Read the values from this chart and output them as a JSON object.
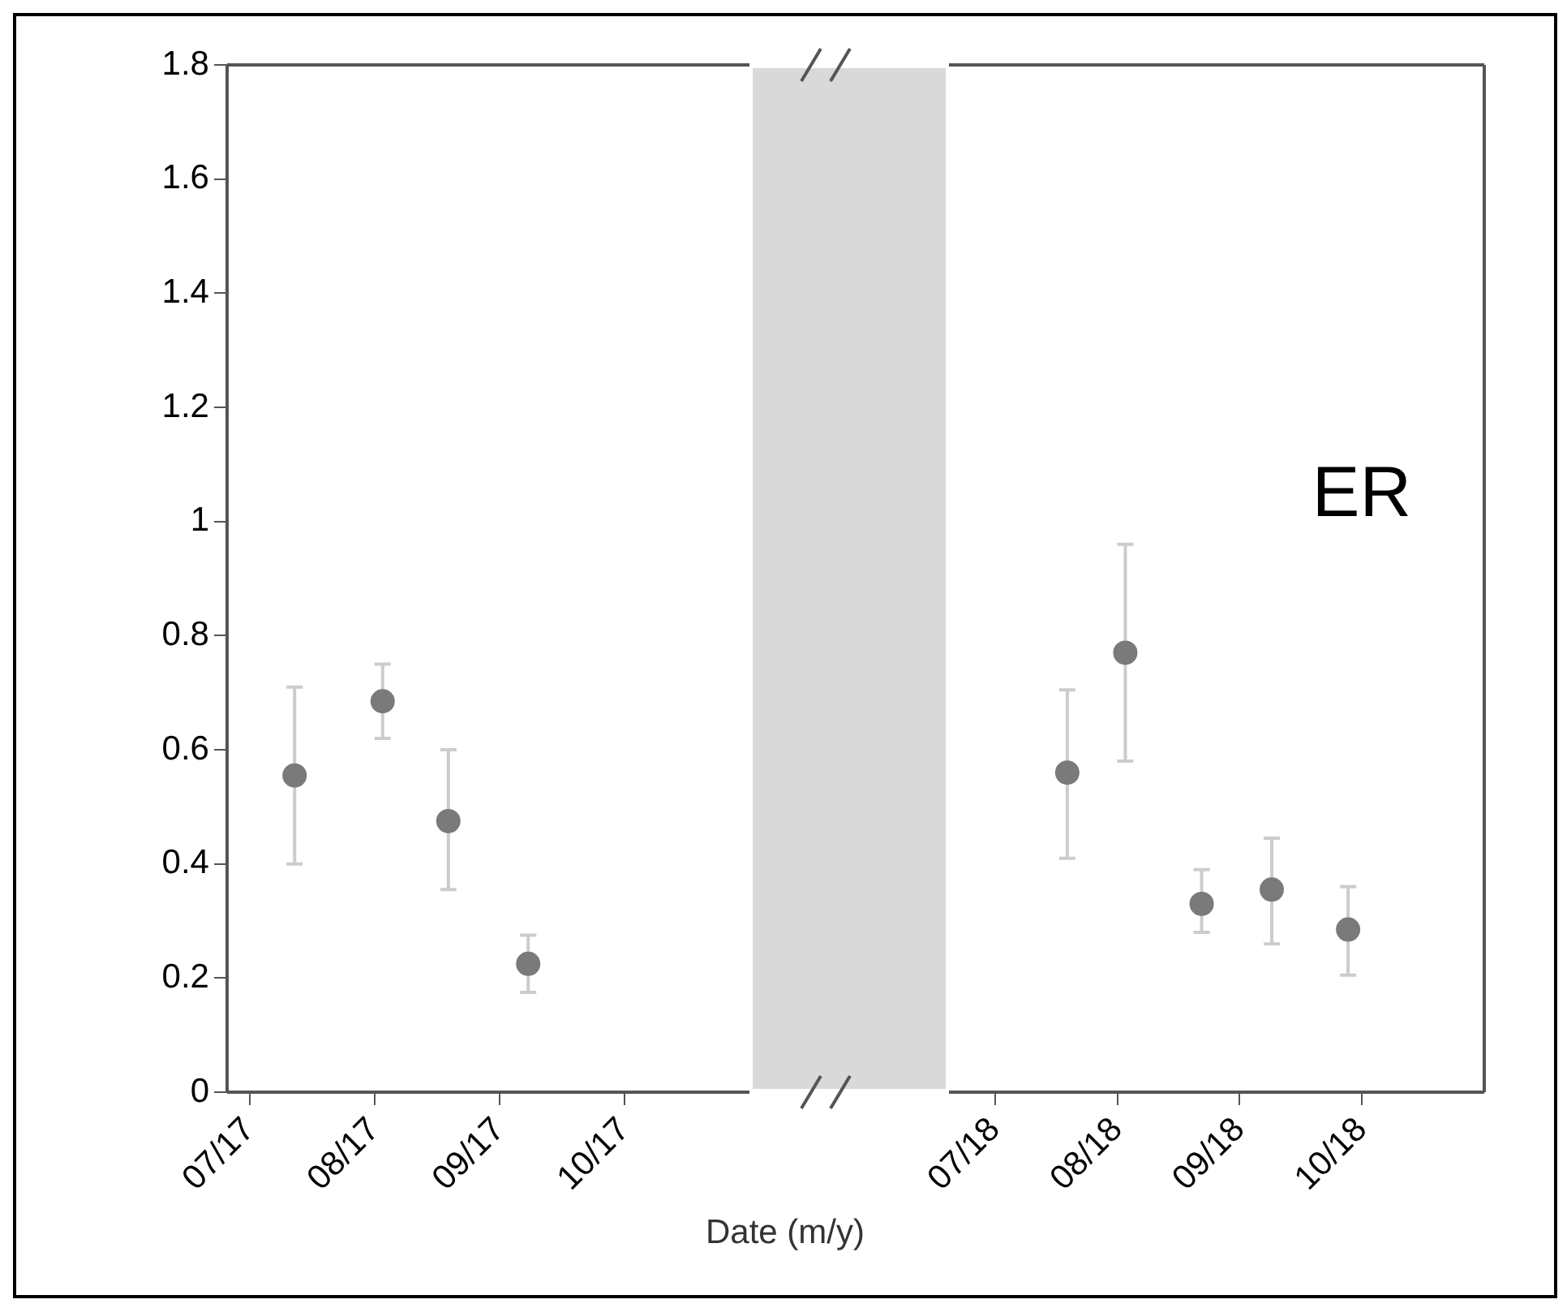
{
  "chart_data": [
    {
      "type": "scatter",
      "xlabel": "Date (m/y)",
      "x": [
        "2017-07-12",
        "2017-08-03",
        "2017-08-19",
        "2017-09-08"
      ],
      "series": [
        {
          "color": "#7a7a7a",
          "values": [
            0.555,
            0.685,
            0.475,
            0.225
          ],
          "errors": [
            [
              0.4,
              0.71
            ],
            [
              0.62,
              0.75
            ],
            [
              0.355,
              0.6
            ],
            [
              0.175,
              0.275
            ]
          ]
        }
      ],
      "xlim": [
        "2017-06-26",
        "2017-11-01"
      ],
      "xticks": [
        {
          "value": "2017-07",
          "label": "07/17"
        },
        {
          "value": "2017-08",
          "label": "08/17"
        },
        {
          "value": "2017-09",
          "label": "09/17"
        },
        {
          "value": "2017-10",
          "label": "10/17"
        }
      ],
      "ylim": [
        0,
        1.8
      ],
      "yticks": [
        0,
        0.2,
        0.4,
        0.6,
        0.8,
        1,
        1.2,
        1.4,
        1.6,
        1.8
      ],
      "marker": "circle",
      "grid": false,
      "legend": false
    },
    {
      "type": "scatter",
      "x": [
        "2018-07-19",
        "2018-08-03",
        "2018-08-22",
        "2018-09-09",
        "2018-09-28"
      ],
      "series": [
        {
          "color": "#7a7a7a",
          "values": [
            0.56,
            0.77,
            0.33,
            0.355,
            0.285
          ],
          "errors": [
            [
              0.41,
              0.705
            ],
            [
              0.58,
              0.96
            ],
            [
              0.28,
              0.39
            ],
            [
              0.26,
              0.445
            ],
            [
              0.205,
              0.36
            ]
          ]
        }
      ],
      "xlim": [
        "2018-06-20",
        "2018-11-01"
      ],
      "xticks": [
        {
          "value": "2018-07",
          "label": "07/18"
        },
        {
          "value": "2018-08",
          "label": "08/18"
        },
        {
          "value": "2018-09",
          "label": "09/18"
        },
        {
          "value": "2018-10",
          "label": "10/18"
        }
      ],
      "ylim": [
        0,
        1.8
      ],
      "tick_labels": "x",
      "annotations": [
        "ER"
      ],
      "marker": "circle",
      "grid": false,
      "legend": false
    }
  ]
}
